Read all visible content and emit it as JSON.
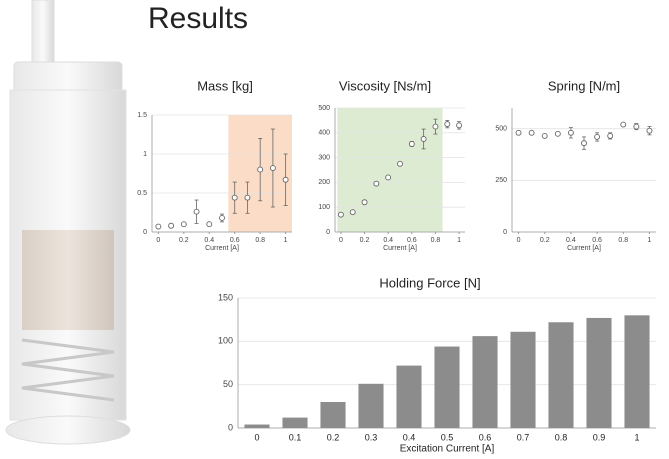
{
  "title": "Results",
  "chart_data": [
    {
      "type": "scatter",
      "title": "Mass [kg]",
      "xlabel": "Current [A]",
      "x": [
        0,
        0.1,
        0.2,
        0.3,
        0.4,
        0.5,
        0.6,
        0.7,
        0.8,
        0.9,
        1
      ],
      "values": [
        0.07,
        0.08,
        0.1,
        0.26,
        0.1,
        0.18,
        0.44,
        0.44,
        0.8,
        0.82,
        0.67
      ],
      "errors": [
        0.02,
        0.02,
        0.02,
        0.15,
        0.02,
        0.05,
        0.2,
        0.2,
        0.4,
        0.5,
        0.33
      ],
      "xlim": [
        -0.05,
        1.05
      ],
      "ylim": [
        0,
        1.5
      ],
      "xticks": [
        0,
        0.2,
        0.4,
        0.6,
        0.8,
        1
      ],
      "yticks": [
        0,
        0.5,
        1,
        1.5
      ],
      "color": "#666666",
      "grid": true,
      "highlight": {
        "range": [
          0.55,
          1.05
        ],
        "color": "#fbdcc6"
      }
    },
    {
      "type": "scatter",
      "title": "Viscosity [Ns/m]",
      "xlabel": "Current [A]",
      "x": [
        0,
        0.1,
        0.2,
        0.3,
        0.4,
        0.5,
        0.6,
        0.7,
        0.8,
        0.9,
        1
      ],
      "values": [
        70,
        80,
        120,
        195,
        220,
        275,
        355,
        375,
        425,
        435,
        430
      ],
      "errors": [
        5,
        5,
        5,
        5,
        5,
        5,
        10,
        40,
        30,
        15,
        15
      ],
      "xlim": [
        -0.05,
        1.05
      ],
      "ylim": [
        0,
        500
      ],
      "xticks": [
        0,
        0.2,
        0.4,
        0.6,
        0.8,
        1
      ],
      "yticks": [
        0,
        100,
        200,
        300,
        400,
        500
      ],
      "color": "#666666",
      "grid": true,
      "highlight": {
        "range": [
          -0.03,
          0.86
        ],
        "color": "#dcebd2"
      }
    },
    {
      "type": "scatter",
      "title": "Spring [N/m]",
      "xlabel": "Current [A]",
      "x": [
        0,
        0.1,
        0.2,
        0.3,
        0.4,
        0.5,
        0.6,
        0.7,
        0.8,
        0.9,
        1
      ],
      "values": [
        480,
        480,
        465,
        475,
        480,
        430,
        460,
        465,
        520,
        510,
        490
      ],
      "errors": [
        8,
        8,
        8,
        8,
        25,
        30,
        20,
        15,
        8,
        15,
        20
      ],
      "xlim": [
        -0.05,
        1.05
      ],
      "ylim": [
        0,
        600
      ],
      "xticks": [
        0,
        0.2,
        0.4,
        0.6,
        0.8,
        1
      ],
      "yticks": [
        0,
        250,
        500
      ],
      "color": "#666666",
      "grid": true
    },
    {
      "type": "bar",
      "title": "Holding Force [N]",
      "xlabel": "Excitation Current [A]",
      "categories": [
        "0",
        "0.1",
        "0.2",
        "0.3",
        "0.4",
        "0.5",
        "0.6",
        "0.7",
        "0.8",
        "0.9",
        "1"
      ],
      "values": [
        4,
        12,
        30,
        51,
        72,
        94,
        106,
        111,
        122,
        127,
        130
      ],
      "ylim": [
        0,
        150
      ],
      "yticks": [
        0,
        50,
        100,
        150
      ],
      "color": "#8c8c8c",
      "grid": true
    }
  ]
}
